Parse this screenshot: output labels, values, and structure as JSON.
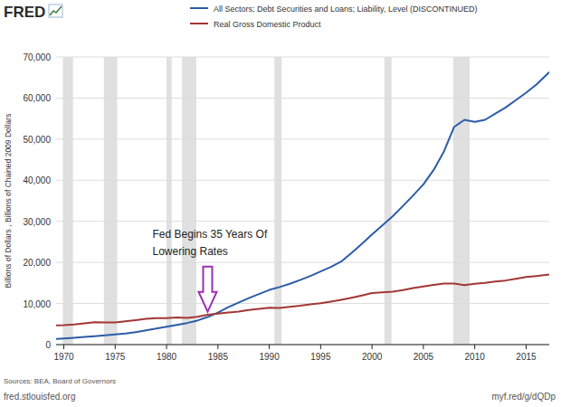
{
  "chart_data": {
    "type": "line",
    "logo": "FRED",
    "y_label": "Billions of Dollars , Billions of Chained 2009 Dollars",
    "source": "Sources: BEA, Board of Governors",
    "url_left": "fred.stlouisfed.org",
    "url_right": "myf.red/g/dQDp",
    "annotation": {
      "text": [
        "Fed Begins 35 Years Of",
        "Lowering Rates"
      ],
      "x": 1984,
      "y": 8000,
      "color": "#9b30b5"
    },
    "x": [
      1969.25,
      1970,
      1971,
      1972,
      1973,
      1974,
      1975,
      1976,
      1977,
      1978,
      1979,
      1980,
      1981,
      1982,
      1983,
      1984,
      1985,
      1986,
      1987,
      1988,
      1989,
      1990,
      1991,
      1992,
      1993,
      1994,
      1995,
      1996,
      1997,
      1998,
      1999,
      2000,
      2001,
      2002,
      2003,
      2004,
      2005,
      2006,
      2007,
      2008,
      2009,
      2010,
      2011,
      2012,
      2013,
      2014,
      2015,
      2016,
      2017.25
    ],
    "series": [
      {
        "name": "All Sectors; Debt Securities and Loans; Liability, Level (DISCONTINUED)",
        "color": "#2c5ca6",
        "values": [
          1400,
          1500,
          1650,
          1850,
          2050,
          2250,
          2450,
          2700,
          3050,
          3450,
          3900,
          4350,
          4800,
          5250,
          5850,
          6700,
          7800,
          9100,
          10200,
          11300,
          12300,
          13300,
          14000,
          14800,
          15700,
          16700,
          17800,
          18900,
          20200,
          22300,
          24500,
          26800,
          29000,
          31200,
          33700,
          36300,
          39000,
          42500,
          47000,
          53000,
          54700,
          54200,
          54700,
          56200,
          57700,
          59500,
          61300,
          63300,
          66300
        ]
      },
      {
        "name": "Real Gross Domestic Product",
        "color": "#a33636",
        "values": [
          4700,
          4750,
          4900,
          5150,
          5450,
          5400,
          5400,
          5650,
          5950,
          6250,
          6450,
          6450,
          6600,
          6500,
          6750,
          7250,
          7550,
          7800,
          8050,
          8400,
          8700,
          8950,
          8900,
          9200,
          9450,
          9800,
          10050,
          10450,
          10900,
          11400,
          11950,
          12550,
          12700,
          12900,
          13250,
          13750,
          14150,
          14550,
          14850,
          14850,
          14450,
          14800,
          15000,
          15350,
          15600,
          16000,
          16450,
          16700,
          17050
        ]
      }
    ],
    "recessions": [
      [
        1969.9,
        1970.9
      ],
      [
        1973.9,
        1975.2
      ],
      [
        1980.0,
        1980.5
      ],
      [
        1981.5,
        1982.9
      ],
      [
        1990.5,
        1991.2
      ],
      [
        2001.2,
        2001.9
      ],
      [
        2007.9,
        2009.5
      ]
    ],
    "xlim": [
      1969.25,
      2017.25
    ],
    "xticks": [
      1970,
      1975,
      1980,
      1985,
      1990,
      1995,
      2000,
      2005,
      2010,
      2015
    ],
    "ylim": [
      0,
      70000
    ],
    "yticks": [
      0,
      {
        "value": 10000,
        "label": "10,000"
      },
      {
        "value": 20000,
        "label": "20,000"
      },
      {
        "value": 30000,
        "label": "30,000"
      },
      {
        "value": 40000,
        "label": "40,000"
      },
      {
        "value": 50000,
        "label": "50,000"
      },
      {
        "value": 60000,
        "label": "60,000"
      },
      {
        "value": 70000,
        "label": "70,000"
      }
    ],
    "grid": true,
    "legend": "top"
  }
}
